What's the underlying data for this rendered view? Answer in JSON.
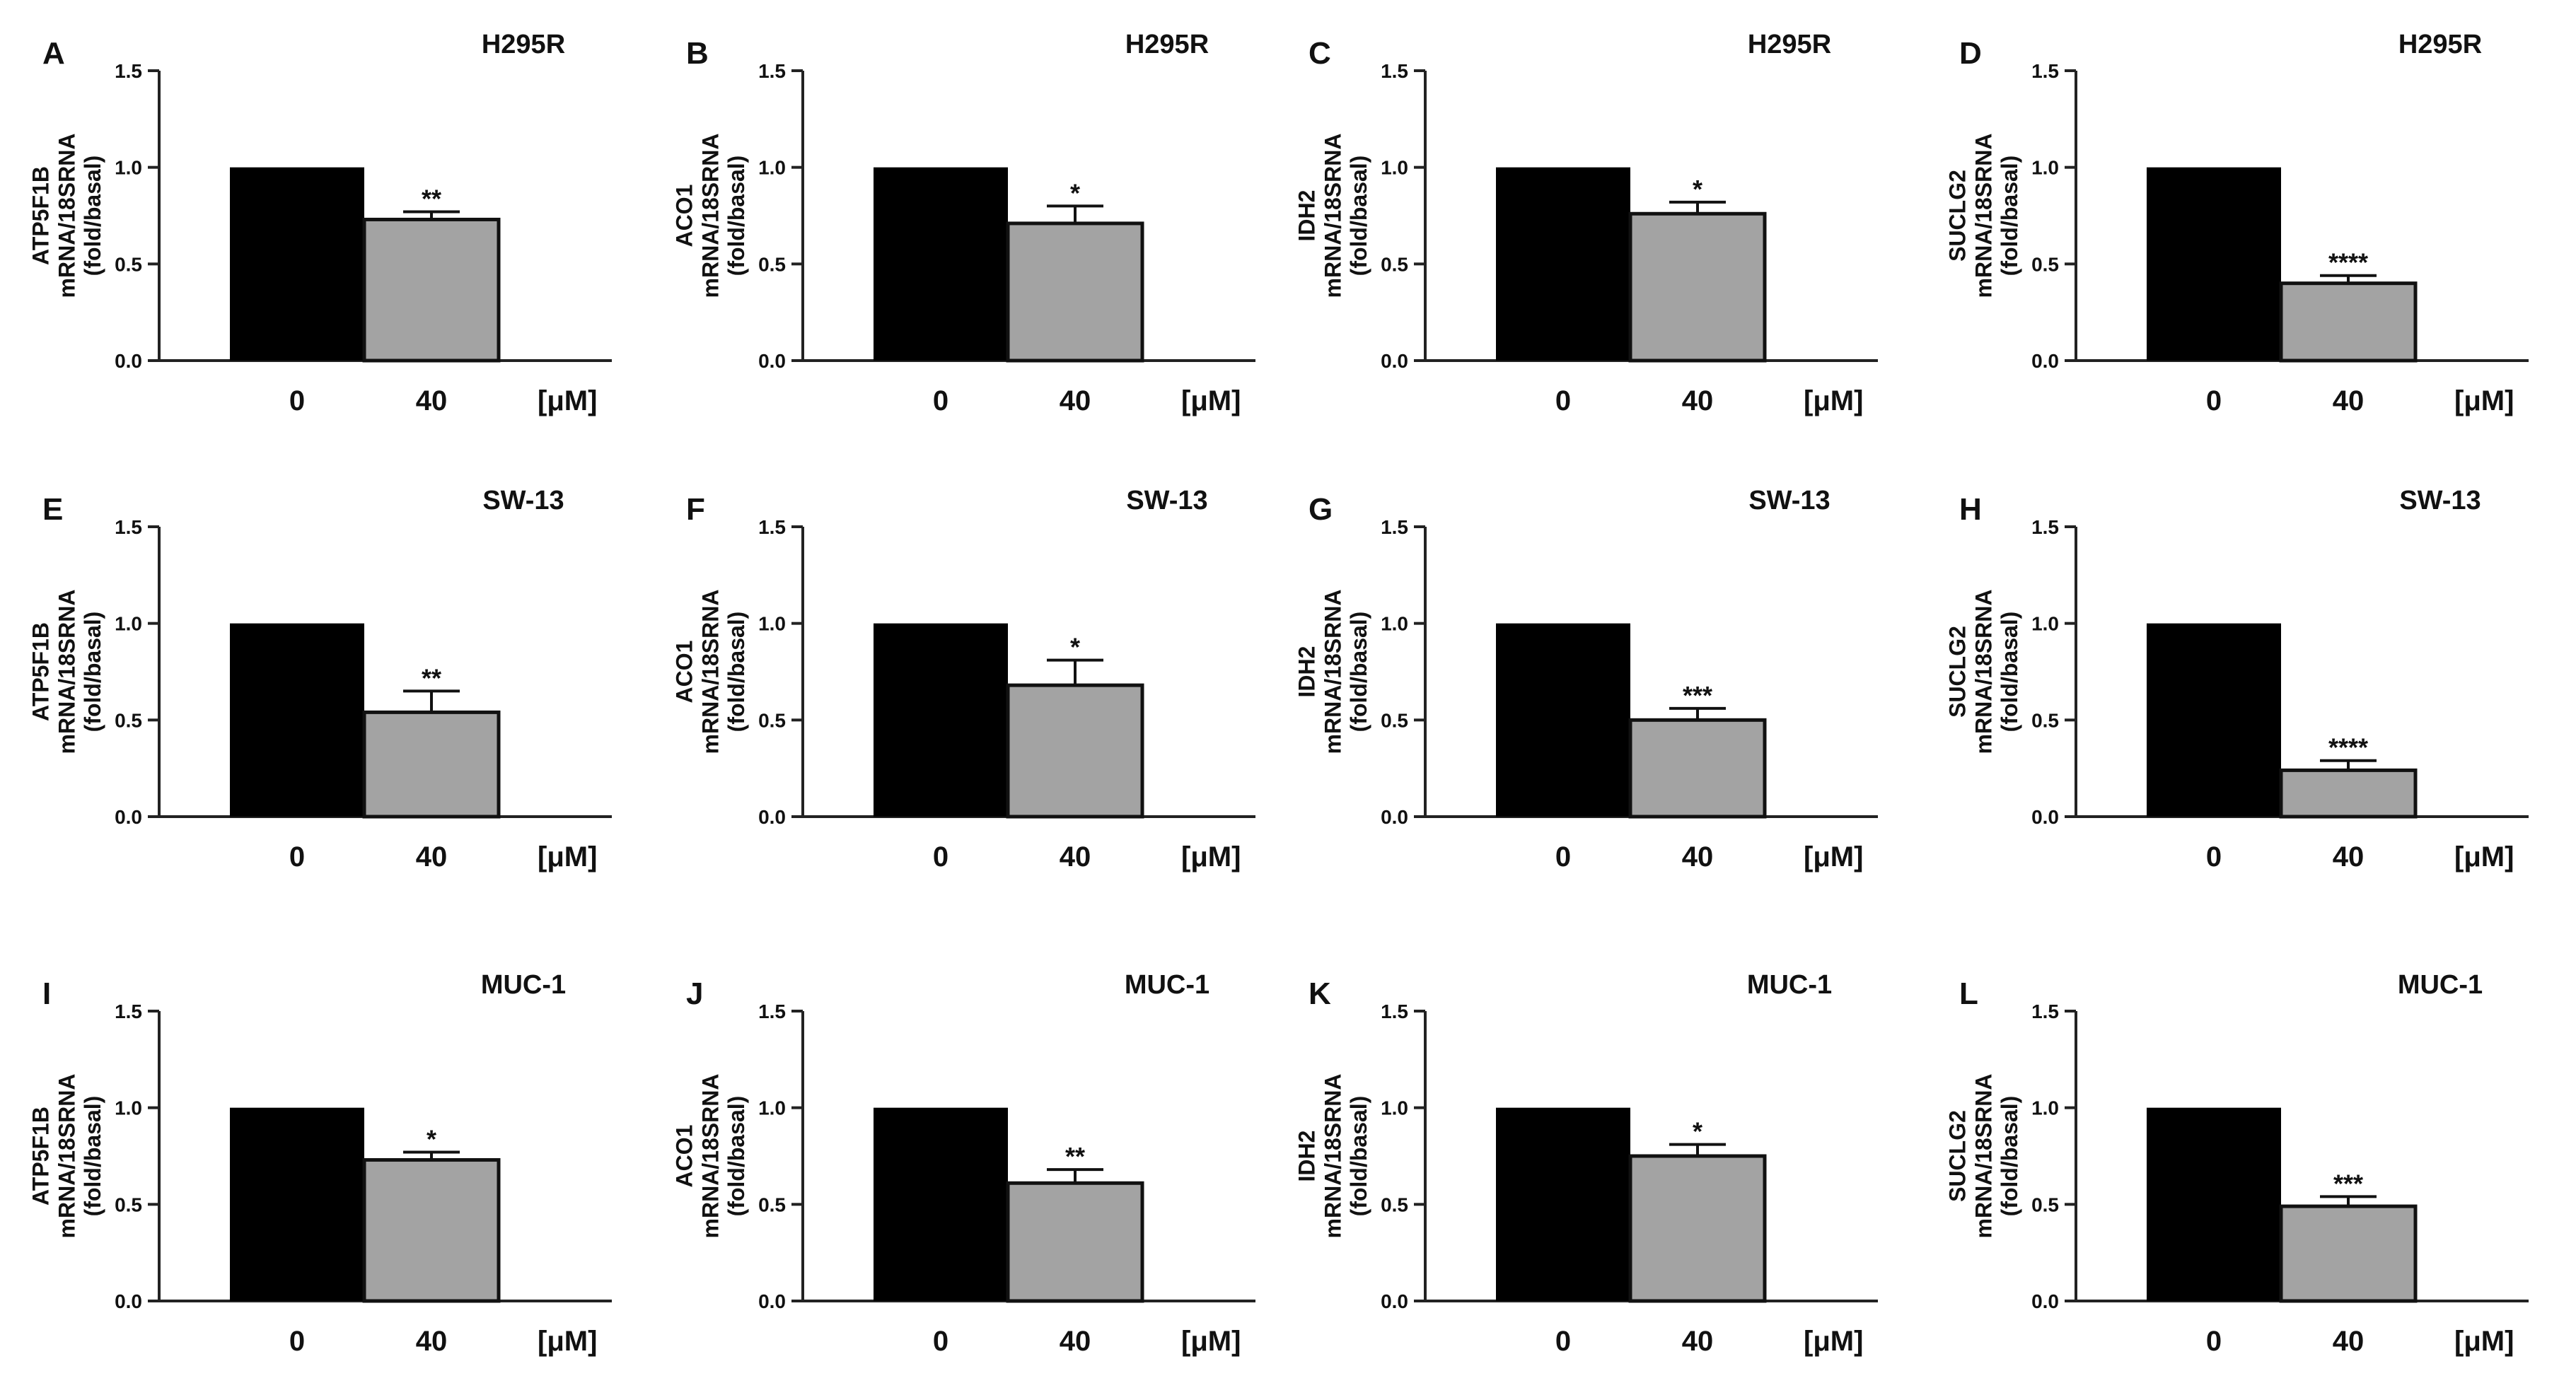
{
  "figure": {
    "unit_label": "[μM]"
  },
  "colors": {
    "control": "#000000",
    "treated": "#a3a3a3",
    "axis": "#222222",
    "background": "#ffffff"
  },
  "chart_data": [
    {
      "panel": "A",
      "type": "bar",
      "title": "H295R",
      "ylabel_lines": [
        "ATP5F1B",
        "mRNA/18SRNA",
        "(fold/basal)"
      ],
      "categories": [
        "0",
        "40"
      ],
      "values": [
        1.0,
        0.73
      ],
      "errors": [
        0,
        0.04
      ],
      "significance": "**",
      "ylim": [
        0,
        1.5
      ],
      "yticks": [
        "0.0",
        "0.5",
        "1.0",
        "1.5"
      ],
      "unit_label": "[μM]"
    },
    {
      "panel": "B",
      "type": "bar",
      "title": "H295R",
      "ylabel_lines": [
        "ACO1",
        "mRNA/18SRNA",
        "(fold/basal)"
      ],
      "categories": [
        "0",
        "40"
      ],
      "values": [
        1.0,
        0.71
      ],
      "errors": [
        0,
        0.09
      ],
      "significance": "*",
      "ylim": [
        0,
        1.5
      ],
      "yticks": [
        "0.0",
        "0.5",
        "1.0",
        "1.5"
      ],
      "unit_label": "[μM]"
    },
    {
      "panel": "C",
      "type": "bar",
      "title": "H295R",
      "ylabel_lines": [
        "IDH2",
        "mRNA/18SRNA",
        "(fold/basal)"
      ],
      "categories": [
        "0",
        "40"
      ],
      "values": [
        1.0,
        0.76
      ],
      "errors": [
        0,
        0.06
      ],
      "significance": "*",
      "ylim": [
        0,
        1.5
      ],
      "yticks": [
        "0.0",
        "0.5",
        "1.0",
        "1.5"
      ],
      "unit_label": "[μM]"
    },
    {
      "panel": "D",
      "type": "bar",
      "title": "H295R",
      "ylabel_lines": [
        "SUCLG2",
        "mRNA/18SRNA",
        "(fold/basal)"
      ],
      "categories": [
        "0",
        "40"
      ],
      "values": [
        1.0,
        0.4
      ],
      "errors": [
        0,
        0.04
      ],
      "significance": "****",
      "ylim": [
        0,
        1.5
      ],
      "yticks": [
        "0.0",
        "0.5",
        "1.0",
        "1.5"
      ],
      "unit_label": "[μM]"
    },
    {
      "panel": "E",
      "type": "bar",
      "title": "SW-13",
      "ylabel_lines": [
        "ATP5F1B",
        "mRNA/18SRNA",
        "(fold/basal)"
      ],
      "categories": [
        "0",
        "40"
      ],
      "values": [
        1.0,
        0.54
      ],
      "errors": [
        0,
        0.11
      ],
      "significance": "**",
      "ylim": [
        0,
        1.5
      ],
      "yticks": [
        "0.0",
        "0.5",
        "1.0",
        "1.5"
      ],
      "unit_label": "[μM]"
    },
    {
      "panel": "F",
      "type": "bar",
      "title": "SW-13",
      "ylabel_lines": [
        "ACO1",
        "mRNA/18SRNA",
        "(fold/basal)"
      ],
      "categories": [
        "0",
        "40"
      ],
      "values": [
        1.0,
        0.68
      ],
      "errors": [
        0,
        0.13
      ],
      "significance": "*",
      "ylim": [
        0,
        1.5
      ],
      "yticks": [
        "0.0",
        "0.5",
        "1.0",
        "1.5"
      ],
      "unit_label": "[μM]"
    },
    {
      "panel": "G",
      "type": "bar",
      "title": "SW-13",
      "ylabel_lines": [
        "IDH2",
        "mRNA/18SRNA",
        "(fold/basal)"
      ],
      "categories": [
        "0",
        "40"
      ],
      "values": [
        1.0,
        0.5
      ],
      "errors": [
        0,
        0.06
      ],
      "significance": "***",
      "ylim": [
        0,
        1.5
      ],
      "yticks": [
        "0.0",
        "0.5",
        "1.0",
        "1.5"
      ],
      "unit_label": "[μM]"
    },
    {
      "panel": "H",
      "type": "bar",
      "title": "SW-13",
      "ylabel_lines": [
        "SUCLG2",
        "mRNA/18SRNA",
        "(fold/basal)"
      ],
      "categories": [
        "0",
        "40"
      ],
      "values": [
        1.0,
        0.24
      ],
      "errors": [
        0,
        0.05
      ],
      "significance": "****",
      "ylim": [
        0,
        1.5
      ],
      "yticks": [
        "0.0",
        "0.5",
        "1.0",
        "1.5"
      ],
      "unit_label": "[μM]"
    },
    {
      "panel": "I",
      "type": "bar",
      "title": "MUC-1",
      "ylabel_lines": [
        "ATP5F1B",
        "mRNA/18SRNA",
        "(fold/basal)"
      ],
      "categories": [
        "0",
        "40"
      ],
      "values": [
        1.0,
        0.73
      ],
      "errors": [
        0,
        0.04
      ],
      "significance": "*",
      "ylim": [
        0,
        1.5
      ],
      "yticks": [
        "0.0",
        "0.5",
        "1.0",
        "1.5"
      ],
      "unit_label": "[μM]"
    },
    {
      "panel": "J",
      "type": "bar",
      "title": "MUC-1",
      "ylabel_lines": [
        "ACO1",
        "mRNA/18SRNA",
        "(fold/basal)"
      ],
      "categories": [
        "0",
        "40"
      ],
      "values": [
        1.0,
        0.61
      ],
      "errors": [
        0,
        0.07
      ],
      "significance": "**",
      "ylim": [
        0,
        1.5
      ],
      "yticks": [
        "0.0",
        "0.5",
        "1.0",
        "1.5"
      ],
      "unit_label": "[μM]"
    },
    {
      "panel": "K",
      "type": "bar",
      "title": "MUC-1",
      "ylabel_lines": [
        "IDH2",
        "mRNA/18SRNA",
        "(fold/basal)"
      ],
      "categories": [
        "0",
        "40"
      ],
      "values": [
        1.0,
        0.75
      ],
      "errors": [
        0,
        0.06
      ],
      "significance": "*",
      "ylim": [
        0,
        1.5
      ],
      "yticks": [
        "0.0",
        "0.5",
        "1.0",
        "1.5"
      ],
      "unit_label": "[μM]"
    },
    {
      "panel": "L",
      "type": "bar",
      "title": "MUC-1",
      "ylabel_lines": [
        "SUCLG2",
        "mRNA/18SRNA",
        "(fold/basal)"
      ],
      "categories": [
        "0",
        "40"
      ],
      "values": [
        1.0,
        0.49
      ],
      "errors": [
        0,
        0.05
      ],
      "significance": "***",
      "ylim": [
        0,
        1.5
      ],
      "yticks": [
        "0.0",
        "0.5",
        "1.0",
        "1.5"
      ],
      "unit_label": "[μM]"
    }
  ]
}
